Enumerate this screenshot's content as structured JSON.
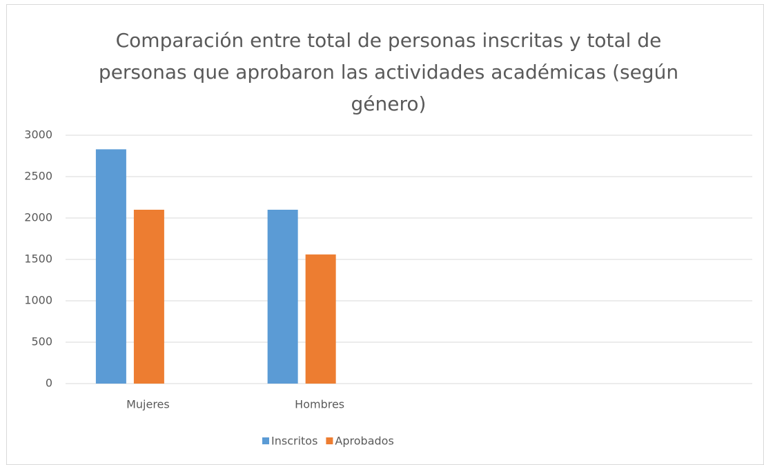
{
  "chart_data": {
    "type": "bar",
    "title": "Comparación entre total de personas inscritas y total de personas que aprobaron las actividades académicas (según género)",
    "categories": [
      "Mujeres",
      "Hombres",
      null,
      null
    ],
    "series": [
      {
        "name": "Inscritos",
        "color": "#5b9bd5",
        "values": [
          2830,
          2100,
          null,
          null
        ]
      },
      {
        "name": "Aprobados",
        "color": "#ed7d31",
        "values": [
          2100,
          1560,
          null,
          null
        ]
      }
    ],
    "ylim": [
      0,
      3000
    ],
    "yticks": [
      0,
      500,
      1000,
      1500,
      2000,
      2500,
      3000
    ],
    "grid": true,
    "legend": "bottom"
  }
}
